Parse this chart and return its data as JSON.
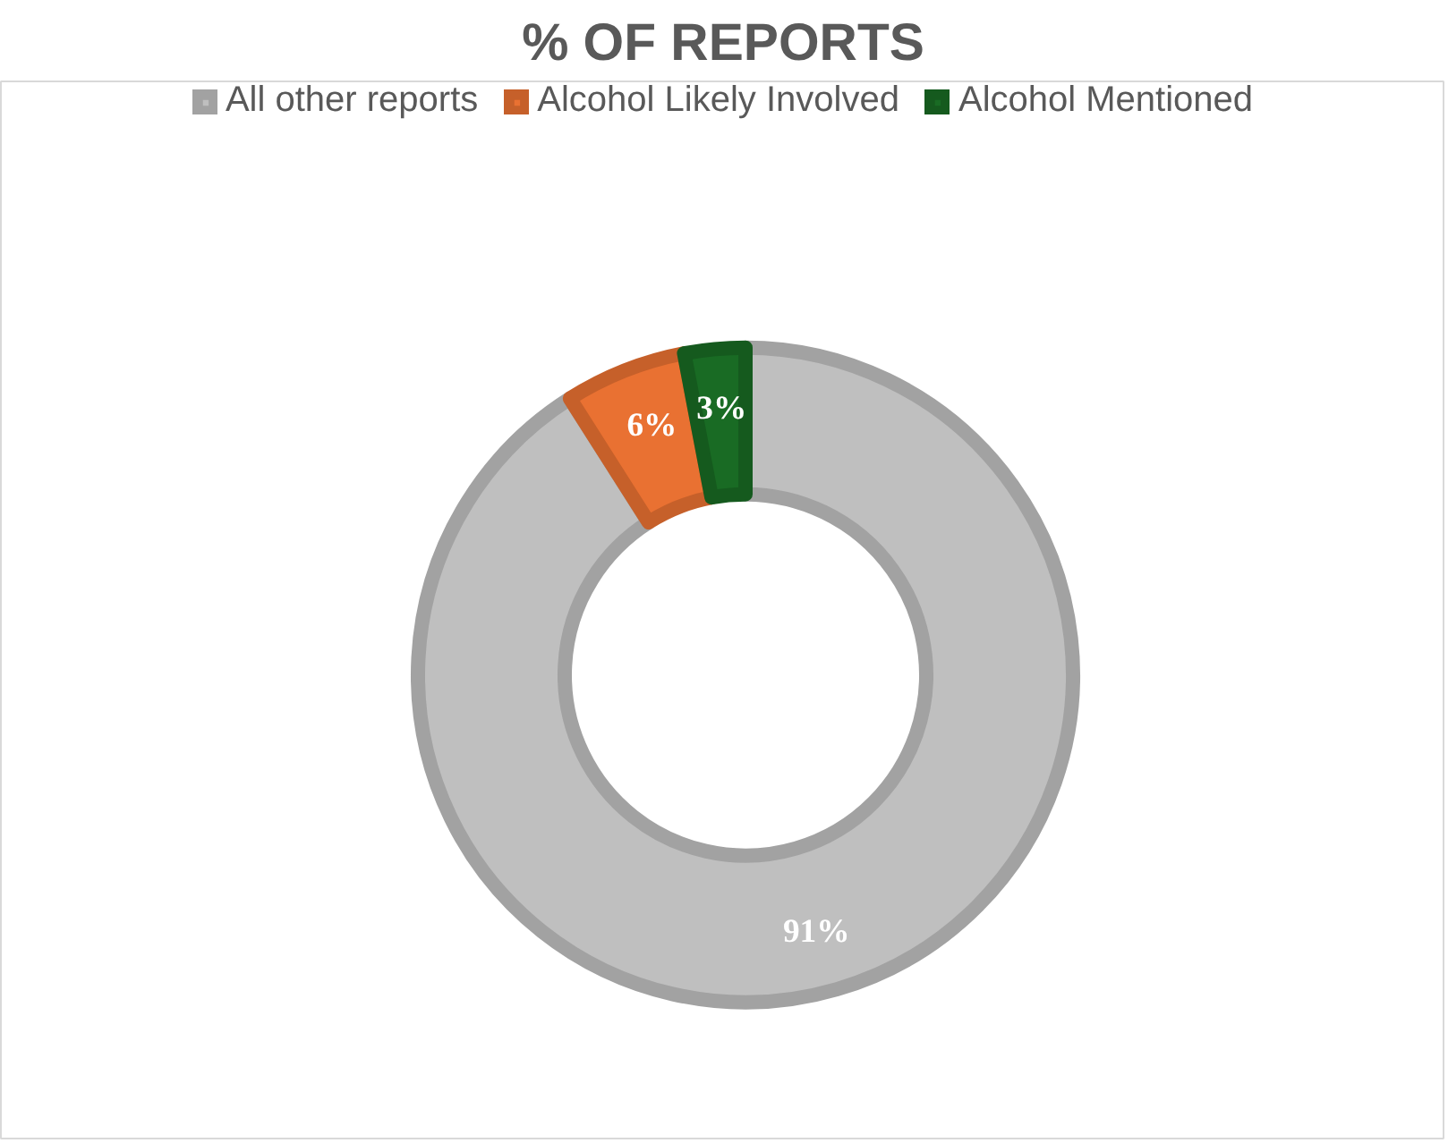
{
  "chart_data": {
    "type": "donut",
    "title": "% OF REPORTS",
    "categories": [
      "All other reports",
      "Alcohol Likely Involved",
      "Alcohol Mentioned"
    ],
    "values": [
      91,
      6,
      3
    ],
    "colors": [
      "#bfbfbf",
      "#e97132",
      "#196b24"
    ],
    "value_labels": [
      "91%",
      "6%",
      "3%"
    ],
    "legend": "top"
  }
}
